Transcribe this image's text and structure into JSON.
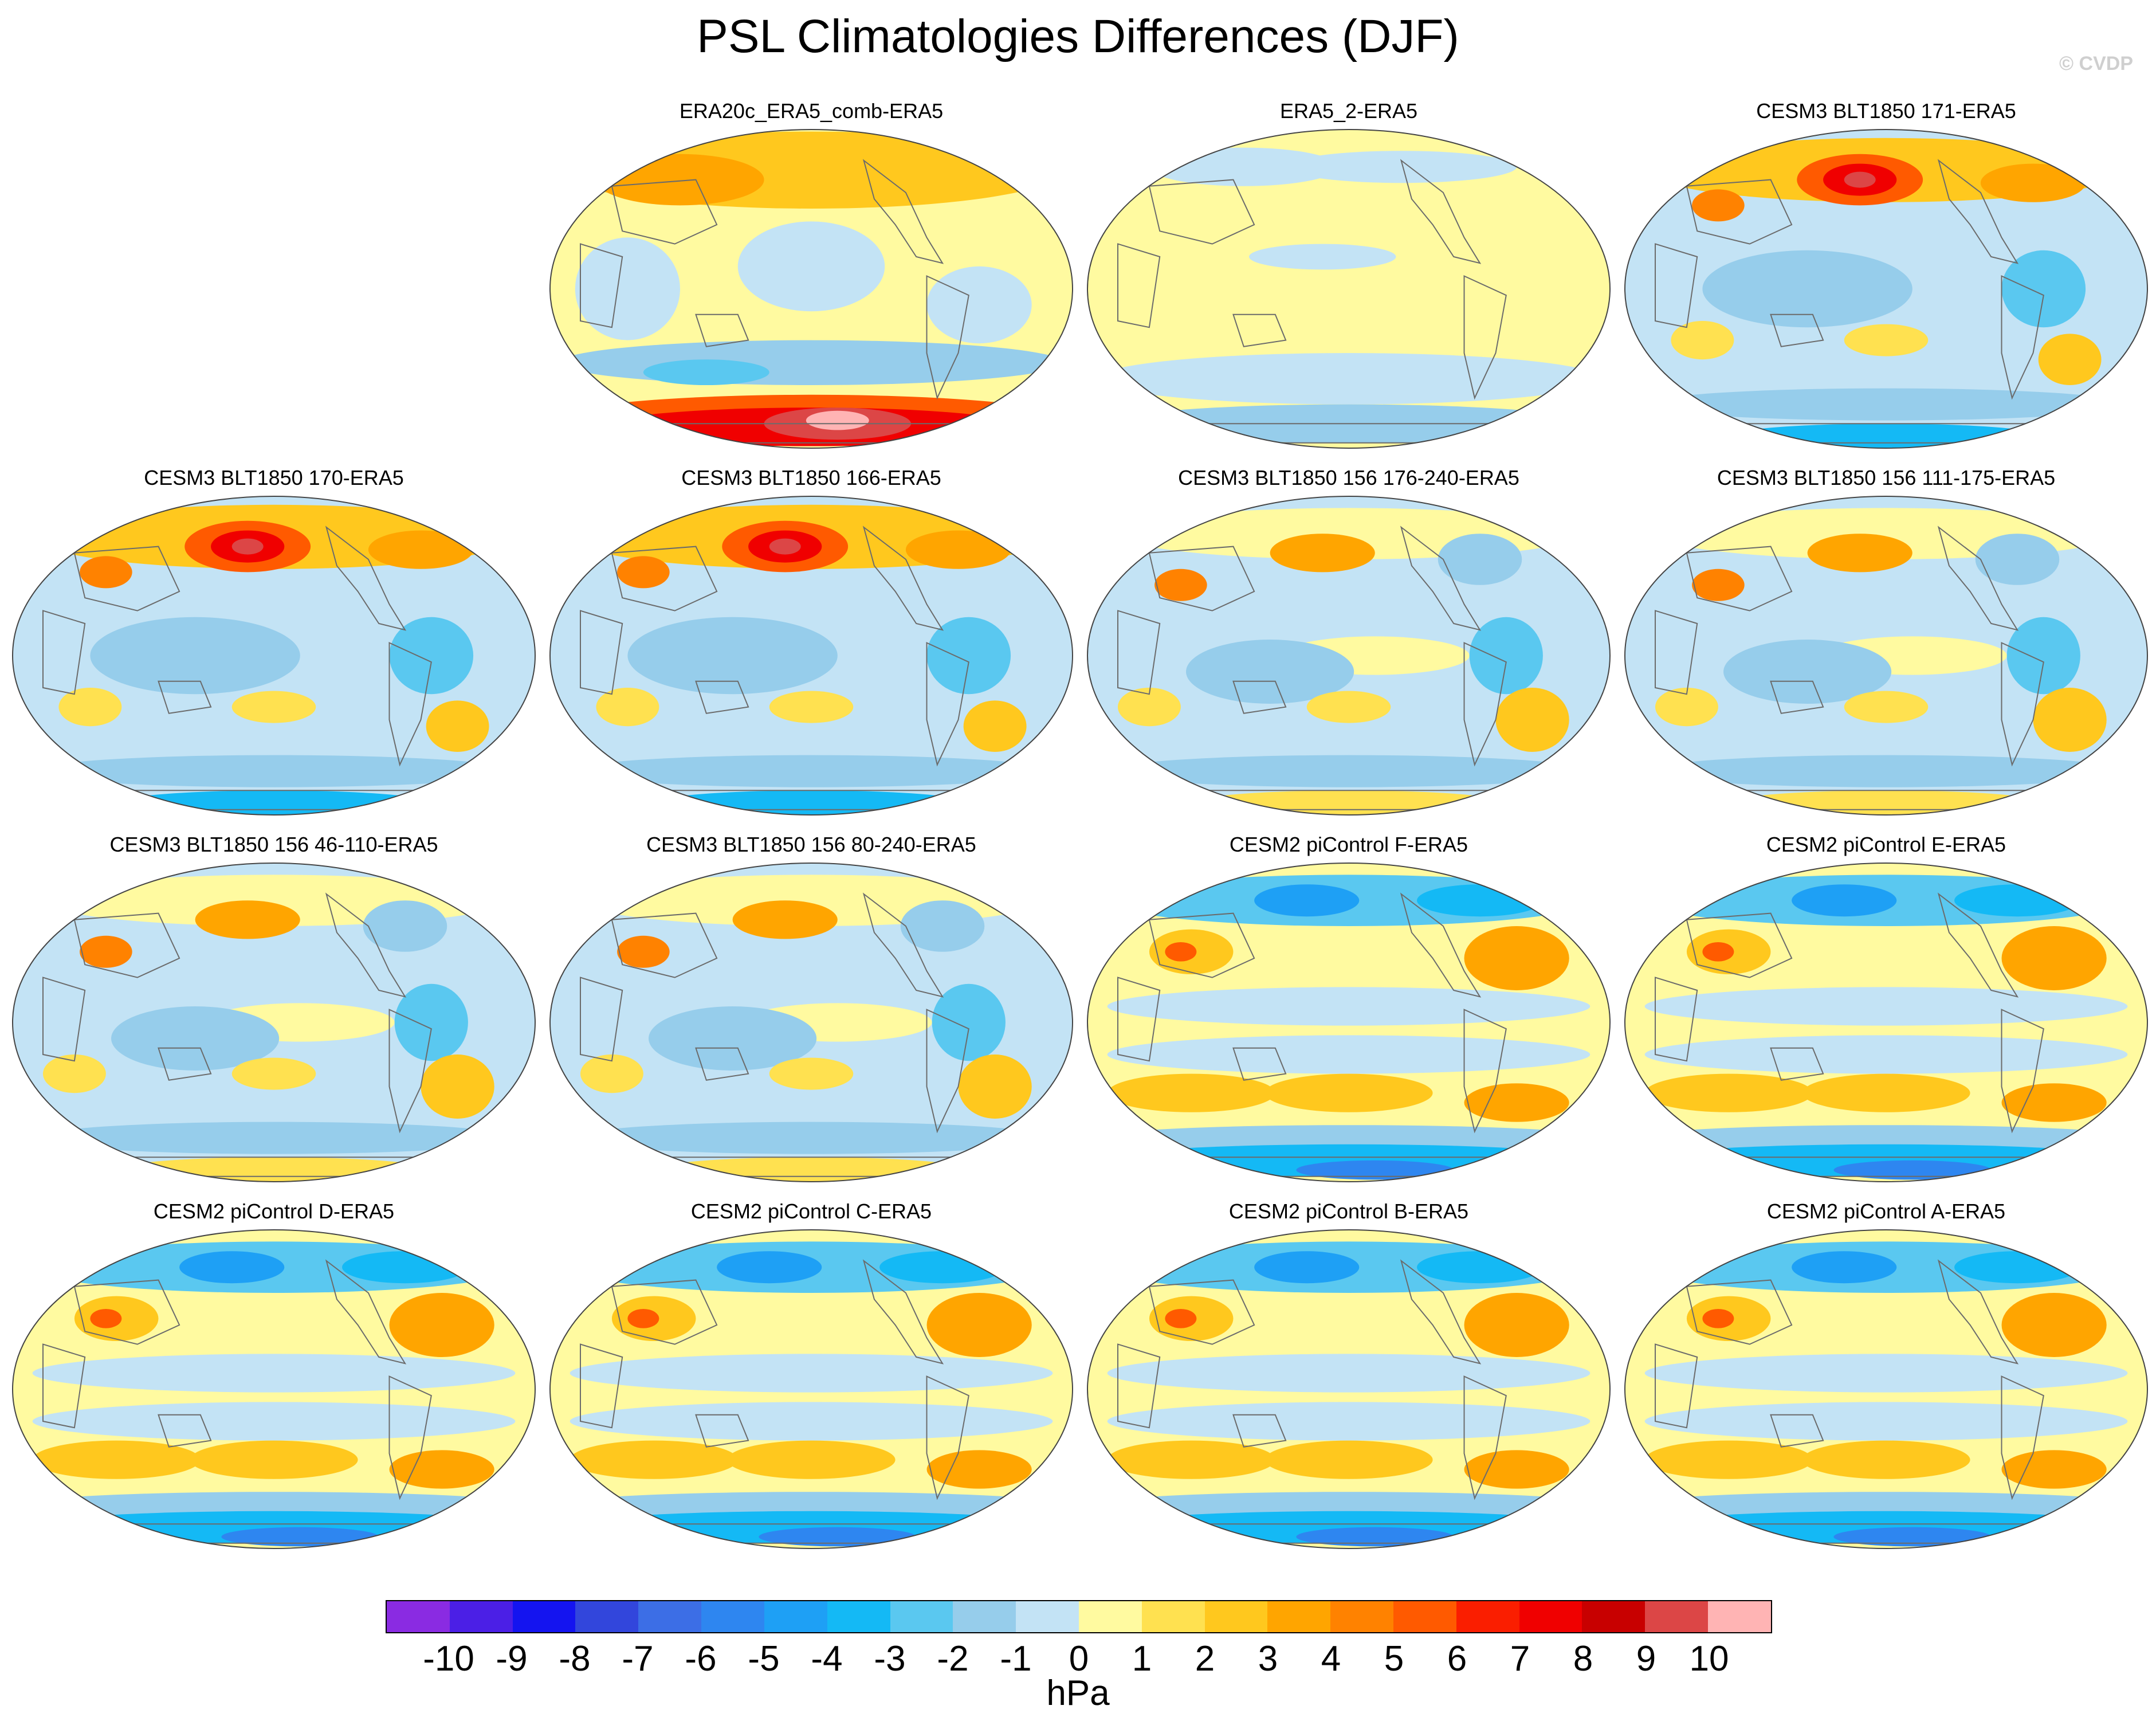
{
  "title": "PSL Climatologies Differences (DJF)",
  "credit": "© CVDP",
  "panels": [
    {
      "label": "ERA20c_ERA5_comb-ERA5",
      "pattern": "era20c"
    },
    {
      "label": "ERA5_2-ERA5",
      "pattern": "era5_2"
    },
    {
      "label": "CESM3 BLT1850 171-ERA5",
      "pattern": "cesm3_strong"
    },
    {
      "label": "CESM3 BLT1850 170-ERA5",
      "pattern": "cesm3_strong"
    },
    {
      "label": "CESM3 BLT1850 166-ERA5",
      "pattern": "cesm3_strong"
    },
    {
      "label": "CESM3 BLT1850 156 176-240-ERA5",
      "pattern": "cesm3_weak"
    },
    {
      "label": "CESM3 BLT1850 156 111-175-ERA5",
      "pattern": "cesm3_weak"
    },
    {
      "label": "CESM3 BLT1850 156 46-110-ERA5",
      "pattern": "cesm3_weak"
    },
    {
      "label": "CESM3 BLT1850 156 80-240-ERA5",
      "pattern": "cesm3_weak"
    },
    {
      "label": "CESM2 piControl F-ERA5",
      "pattern": "cesm2"
    },
    {
      "label": "CESM2 piControl E-ERA5",
      "pattern": "cesm2"
    },
    {
      "label": "CESM2 piControl D-ERA5",
      "pattern": "cesm2"
    },
    {
      "label": "CESM2 piControl C-ERA5",
      "pattern": "cesm2"
    },
    {
      "label": "CESM2 piControl B-ERA5",
      "pattern": "cesm2"
    },
    {
      "label": "CESM2 piControl A-ERA5",
      "pattern": "cesm2"
    }
  ],
  "colorbar": {
    "units": "hPa",
    "levels": [
      "-10",
      "-9",
      "-8",
      "-7",
      "-6",
      "-5",
      "-4",
      "-3",
      "-2",
      "-1",
      "0",
      "1",
      "2",
      "3",
      "4",
      "5",
      "6",
      "7",
      "8",
      "9",
      "10"
    ],
    "colors": [
      "#8a2be2",
      "#4b1fe6",
      "#1414f0",
      "#3246dc",
      "#3c6ee6",
      "#2e86f0",
      "#1ea0f5",
      "#14b9f5",
      "#5ac8f0",
      "#96cdeb",
      "#c3e3f5",
      "#fffaa0",
      "#ffe150",
      "#ffc81e",
      "#ffa500",
      "#ff8200",
      "#ff5a00",
      "#fa1e00",
      "#f00000",
      "#c80000",
      "#dc4646",
      "#ffb4b4"
    ]
  }
}
